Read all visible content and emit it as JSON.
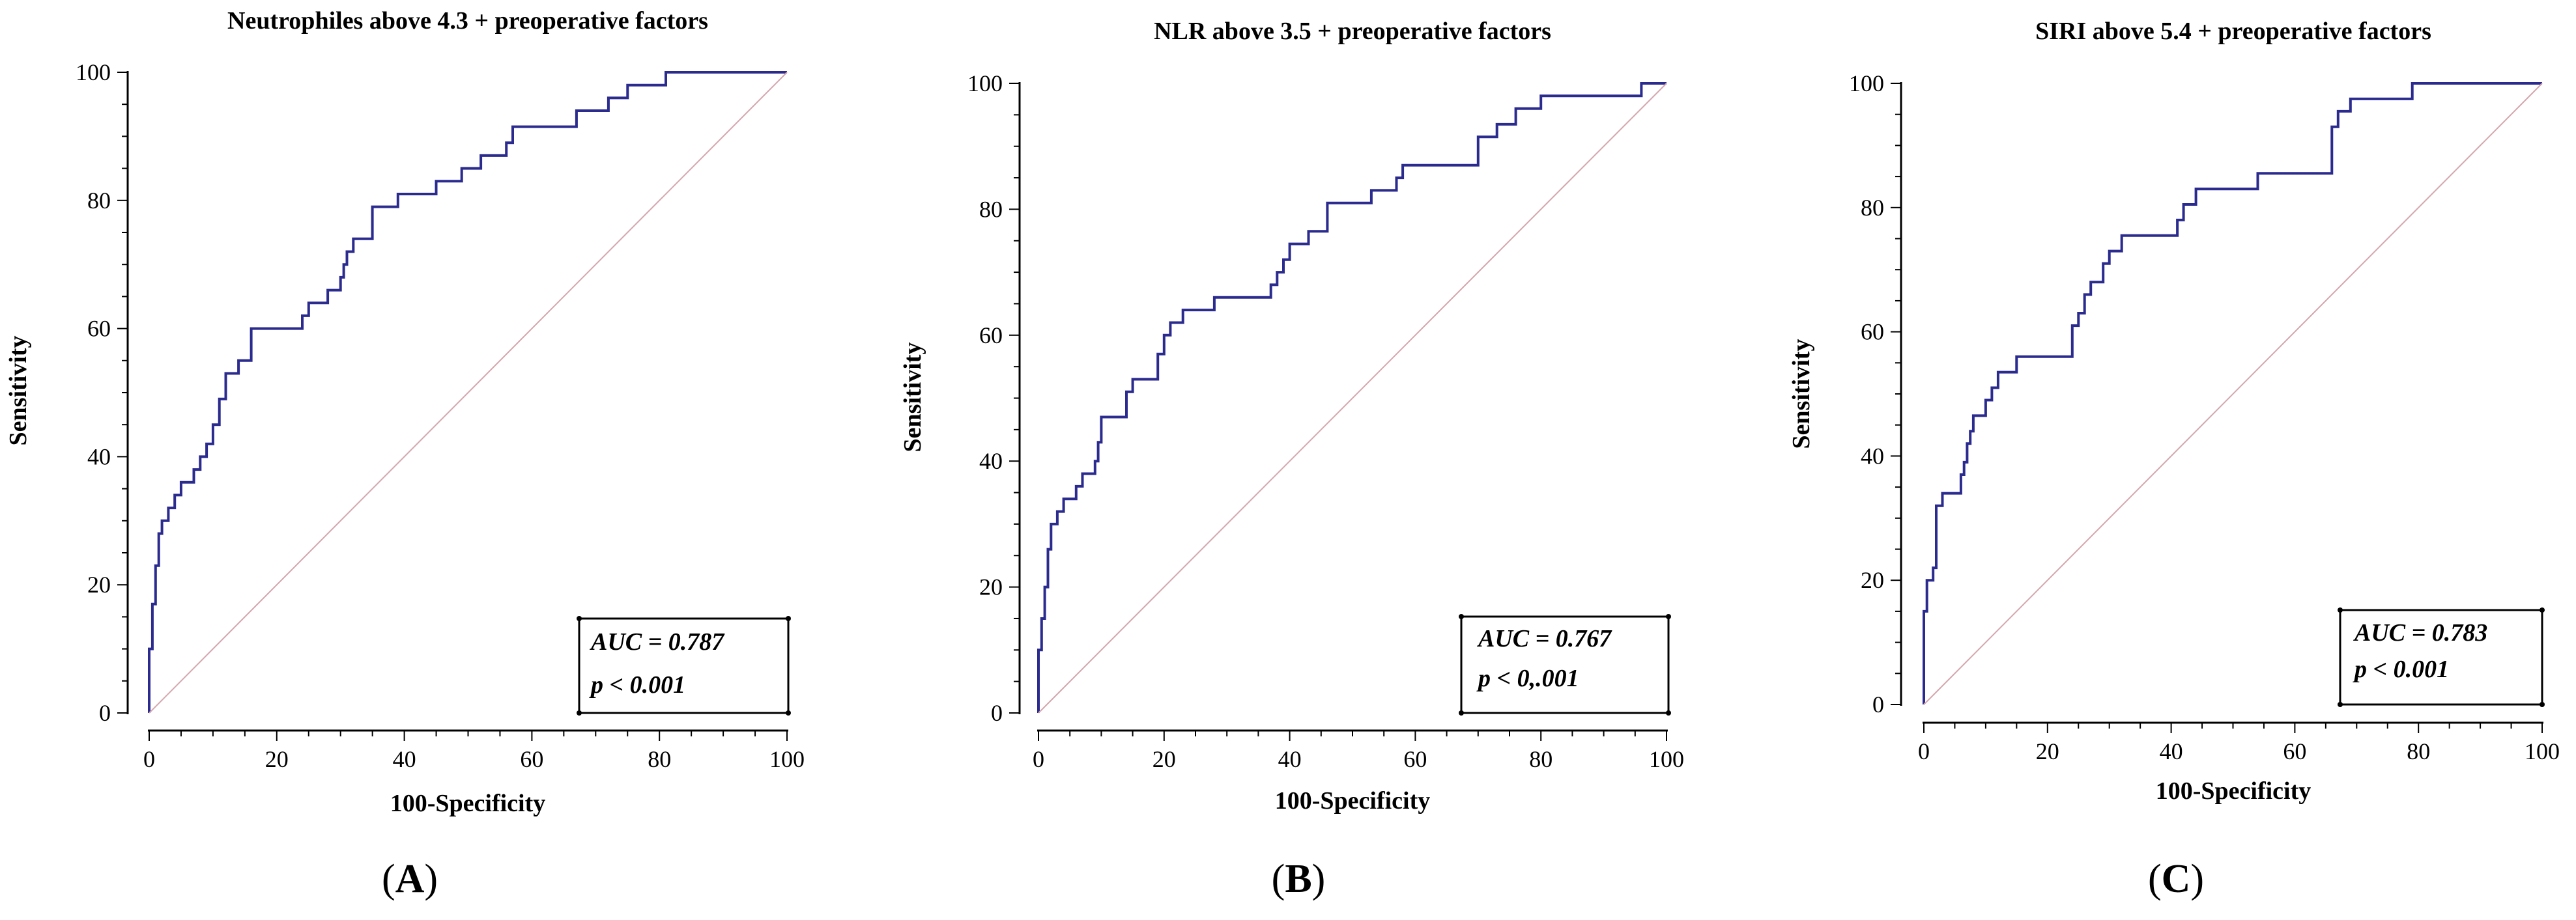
{
  "figure": {
    "panels": [
      {
        "letter": "A",
        "letter_display": "(A)",
        "title": "Neutrophiles above 4.3 + preoperative factors",
        "auc_text": "AUC = 0.787",
        "p_text": "p < 0.001"
      },
      {
        "letter": "B",
        "letter_display": "(B)",
        "title": "NLR above 3.5 + preoperative factors",
        "auc_text": "AUC = 0.767",
        "p_text": "p < 0,.001"
      },
      {
        "letter": "C",
        "letter_display": "(C)",
        "title": "SIRI above 5.4 + preoperative factors",
        "auc_text": "AUC = 0.783",
        "p_text": "p < 0.001"
      }
    ]
  },
  "colors": {
    "roc_curve": "#2b2b8f",
    "reference_line": "#d4a6ad",
    "axis": "#000000"
  },
  "chart_data": [
    {
      "type": "line",
      "title": "Neutrophiles above 4.3 + preoperative factors",
      "xlabel": "100-Specificity",
      "ylabel": "Sensitivity",
      "xlim": [
        0,
        100
      ],
      "ylim": [
        0,
        100
      ],
      "xticks": [
        0,
        20,
        40,
        60,
        80,
        100
      ],
      "yticks": [
        0,
        20,
        40,
        60,
        80,
        100
      ],
      "grid": false,
      "auc": 0.787,
      "annotation": [
        "AUC = 0.787",
        "p < 0.001"
      ],
      "series": [
        {
          "kind": "roc",
          "points": [
            [
              0,
              0
            ],
            [
              0,
              10
            ],
            [
              0.5,
              10
            ],
            [
              0.5,
              17
            ],
            [
              1,
              17
            ],
            [
              1,
              23
            ],
            [
              1.5,
              23
            ],
            [
              1.5,
              28
            ],
            [
              2,
              28
            ],
            [
              2,
              30
            ],
            [
              3,
              30
            ],
            [
              3,
              32
            ],
            [
              4,
              32
            ],
            [
              4,
              34
            ],
            [
              5,
              34
            ],
            [
              5,
              36
            ],
            [
              7,
              36
            ],
            [
              7,
              38
            ],
            [
              8,
              38
            ],
            [
              8,
              40
            ],
            [
              9,
              40
            ],
            [
              9,
              42
            ],
            [
              10,
              42
            ],
            [
              10,
              45
            ],
            [
              11,
              45
            ],
            [
              11,
              49
            ],
            [
              12,
              49
            ],
            [
              12,
              53
            ],
            [
              14,
              53
            ],
            [
              14,
              55
            ],
            [
              16,
              55
            ],
            [
              16,
              60
            ],
            [
              24,
              60
            ],
            [
              24,
              62
            ],
            [
              25,
              62
            ],
            [
              25,
              64
            ],
            [
              28,
              64
            ],
            [
              28,
              66
            ],
            [
              30,
              66
            ],
            [
              30,
              68
            ],
            [
              30.5,
              68
            ],
            [
              30.5,
              70
            ],
            [
              31,
              70
            ],
            [
              31,
              72
            ],
            [
              32,
              72
            ],
            [
              32,
              74
            ],
            [
              35,
              74
            ],
            [
              35,
              79
            ],
            [
              39,
              79
            ],
            [
              39,
              81
            ],
            [
              45,
              81
            ],
            [
              45,
              83
            ],
            [
              49,
              83
            ],
            [
              49,
              85
            ],
            [
              52,
              85
            ],
            [
              52,
              87
            ],
            [
              56,
              87
            ],
            [
              56,
              89
            ],
            [
              57,
              89
            ],
            [
              57,
              91.5
            ],
            [
              67,
              91.5
            ],
            [
              67,
              94
            ],
            [
              72,
              94
            ],
            [
              72,
              96
            ],
            [
              75,
              96
            ],
            [
              75,
              98
            ],
            [
              81,
              98
            ],
            [
              81,
              100
            ],
            [
              100,
              100
            ]
          ]
        },
        {
          "kind": "reference",
          "points": [
            [
              0,
              0
            ],
            [
              100,
              100
            ]
          ]
        }
      ]
    },
    {
      "type": "line",
      "title": "NLR above 3.5 + preoperative factors",
      "xlabel": "100-Specificity",
      "ylabel": "Sensitivity",
      "xlim": [
        0,
        100
      ],
      "ylim": [
        0,
        100
      ],
      "xticks": [
        0,
        20,
        40,
        60,
        80,
        100
      ],
      "yticks": [
        0,
        20,
        40,
        60,
        80,
        100
      ],
      "grid": false,
      "auc": 0.767,
      "annotation": [
        "AUC = 0.767",
        "p < 0,.001"
      ],
      "series": [
        {
          "kind": "roc",
          "points": [
            [
              0,
              0
            ],
            [
              0,
              10
            ],
            [
              0.5,
              10
            ],
            [
              0.5,
              15
            ],
            [
              1,
              15
            ],
            [
              1,
              20
            ],
            [
              1.5,
              20
            ],
            [
              1.5,
              26
            ],
            [
              2,
              26
            ],
            [
              2,
              30
            ],
            [
              3,
              30
            ],
            [
              3,
              32
            ],
            [
              4,
              32
            ],
            [
              4,
              34
            ],
            [
              6,
              34
            ],
            [
              6,
              36
            ],
            [
              7,
              36
            ],
            [
              7,
              38
            ],
            [
              9,
              38
            ],
            [
              9,
              40
            ],
            [
              9.5,
              40
            ],
            [
              9.5,
              43
            ],
            [
              10,
              43
            ],
            [
              10,
              47
            ],
            [
              14,
              47
            ],
            [
              14,
              51
            ],
            [
              15,
              51
            ],
            [
              15,
              53
            ],
            [
              19,
              53
            ],
            [
              19,
              57
            ],
            [
              20,
              57
            ],
            [
              20,
              60
            ],
            [
              21,
              60
            ],
            [
              21,
              62
            ],
            [
              23,
              62
            ],
            [
              23,
              64
            ],
            [
              28,
              64
            ],
            [
              28,
              66
            ],
            [
              37,
              66
            ],
            [
              37,
              68
            ],
            [
              38,
              68
            ],
            [
              38,
              70
            ],
            [
              39,
              70
            ],
            [
              39,
              72
            ],
            [
              40,
              72
            ],
            [
              40,
              74.5
            ],
            [
              43,
              74.5
            ],
            [
              43,
              76.5
            ],
            [
              46,
              76.5
            ],
            [
              46,
              81
            ],
            [
              53,
              81
            ],
            [
              53,
              83
            ],
            [
              57,
              83
            ],
            [
              57,
              85
            ],
            [
              58,
              85
            ],
            [
              58,
              87
            ],
            [
              70,
              87
            ],
            [
              70,
              91.5
            ],
            [
              73,
              91.5
            ],
            [
              73,
              93.5
            ],
            [
              76,
              93.5
            ],
            [
              76,
              96
            ],
            [
              80,
              96
            ],
            [
              80,
              98
            ],
            [
              96,
              98
            ],
            [
              96,
              100
            ],
            [
              100,
              100
            ]
          ]
        },
        {
          "kind": "reference",
          "points": [
            [
              0,
              0
            ],
            [
              100,
              100
            ]
          ]
        }
      ]
    },
    {
      "type": "line",
      "title": "SIRI above 5.4 + preoperative factors",
      "xlabel": "100-Specificity",
      "ylabel": "Sensitivity",
      "xlim": [
        0,
        100
      ],
      "ylim": [
        0,
        100
      ],
      "xticks": [
        0,
        20,
        40,
        60,
        80,
        100
      ],
      "yticks": [
        0,
        20,
        40,
        60,
        80,
        100
      ],
      "grid": false,
      "auc": 0.783,
      "annotation": [
        "AUC = 0.783",
        "p < 0.001"
      ],
      "series": [
        {
          "kind": "roc",
          "points": [
            [
              0,
              0
            ],
            [
              0,
              15
            ],
            [
              0.5,
              15
            ],
            [
              0.5,
              20
            ],
            [
              1.5,
              20
            ],
            [
              1.5,
              22
            ],
            [
              2,
              22
            ],
            [
              2,
              32
            ],
            [
              3,
              32
            ],
            [
              3,
              34
            ],
            [
              6,
              34
            ],
            [
              6,
              37
            ],
            [
              6.5,
              37
            ],
            [
              6.5,
              39
            ],
            [
              7,
              39
            ],
            [
              7,
              42
            ],
            [
              7.5,
              42
            ],
            [
              7.5,
              44
            ],
            [
              8,
              44
            ],
            [
              8,
              46.5
            ],
            [
              10,
              46.5
            ],
            [
              10,
              49
            ],
            [
              11,
              49
            ],
            [
              11,
              51
            ],
            [
              12,
              51
            ],
            [
              12,
              53.5
            ],
            [
              15,
              53.5
            ],
            [
              15,
              56
            ],
            [
              24,
              56
            ],
            [
              24,
              61
            ],
            [
              25,
              61
            ],
            [
              25,
              63
            ],
            [
              26,
              63
            ],
            [
              26,
              66
            ],
            [
              27,
              66
            ],
            [
              27,
              68
            ],
            [
              29,
              68
            ],
            [
              29,
              71
            ],
            [
              30,
              71
            ],
            [
              30,
              73
            ],
            [
              32,
              73
            ],
            [
              32,
              75.5
            ],
            [
              41,
              75.5
            ],
            [
              41,
              78
            ],
            [
              42,
              78
            ],
            [
              42,
              80.5
            ],
            [
              44,
              80.5
            ],
            [
              44,
              83
            ],
            [
              54,
              83
            ],
            [
              54,
              85.5
            ],
            [
              66,
              85.5
            ],
            [
              66,
              93
            ],
            [
              67,
              93
            ],
            [
              67,
              95.5
            ],
            [
              69,
              95.5
            ],
            [
              69,
              97.5
            ],
            [
              79,
              97.5
            ],
            [
              79,
              100
            ],
            [
              100,
              100
            ]
          ]
        },
        {
          "kind": "reference",
          "points": [
            [
              0,
              0
            ],
            [
              100,
              100
            ]
          ]
        }
      ]
    }
  ]
}
